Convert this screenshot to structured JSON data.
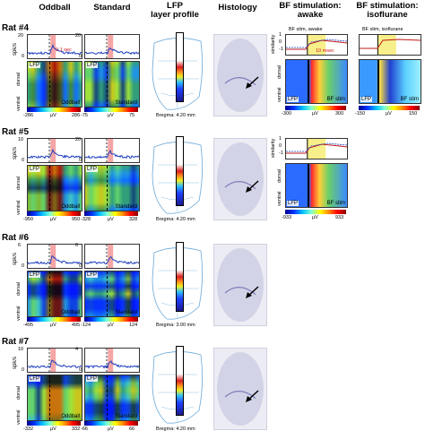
{
  "headers": {
    "oddball": "Oddball",
    "standard": "Standard",
    "lfp": "LFP\nlayer profile",
    "histology": "Histology",
    "bf_awake": "BF stimulation:\nawake",
    "bf_iso": "BF stimulation:\nisoflurane"
  },
  "axis": {
    "spk": "spk/s",
    "lfp": "LFP",
    "dorsal": "dorsal",
    "ventral": "ventral",
    "uv": "µV",
    "similarity": "similarity"
  },
  "rats": [
    {
      "label": "Rat #4",
      "odd_ymax": "20",
      "std_ymax": "20",
      "odd_min": "-286",
      "odd_max": "286",
      "std_min": "-75",
      "std_max": "75",
      "odd_tag": "Oddball",
      "std_tag": "Standard",
      "time_note": "0.1 sec",
      "bregma": "Bregma: 4.20 mm",
      "bf": {
        "awake_title": "BF stim, awake",
        "iso_title": "BF stim, isoflurane",
        "msec_note": "10 msec",
        "awake_min": "-300",
        "awake_max": "300",
        "iso_min": "-150",
        "iso_max": "150",
        "awake_tag": "BF stim",
        "iso_tag": "BF stim",
        "sim_ticks": [
          "1",
          "0",
          "-1"
        ]
      }
    },
    {
      "label": "Rat #5",
      "odd_ymax": "10",
      "std_ymax": "20",
      "odd_min": "-950",
      "odd_max": "950",
      "std_min": "-328",
      "std_max": "328",
      "odd_tag": "Oddball",
      "std_tag": "Standard",
      "bregma": "Bregma: 4.20 mm",
      "bf": {
        "awake_min": "-933",
        "awake_max": "933",
        "awake_tag": "BF stim",
        "sim_ticks": [
          "1",
          "0",
          "-1"
        ]
      }
    },
    {
      "label": "Rat #6",
      "odd_ymax": "6",
      "std_ymax": "6",
      "odd_min": "-495",
      "odd_max": "495",
      "std_min": "-124",
      "std_max": "124",
      "odd_tag": "Oddball",
      "std_tag": "Standard",
      "bregma": "Bregma: 3.00 mm"
    },
    {
      "label": "Rat #7",
      "odd_ymax": "10",
      "std_ymax": "4",
      "odd_min": "-332",
      "odd_max": "332",
      "std_min": "-66",
      "std_max": "66",
      "odd_tag": "Oddball",
      "std_tag": "Standard",
      "bregma": "Bregma: 4.20 mm"
    }
  ],
  "colors": {
    "trace": "#1f3fbf",
    "highlight": "#f4a6a6",
    "red_note": "#d01010"
  }
}
